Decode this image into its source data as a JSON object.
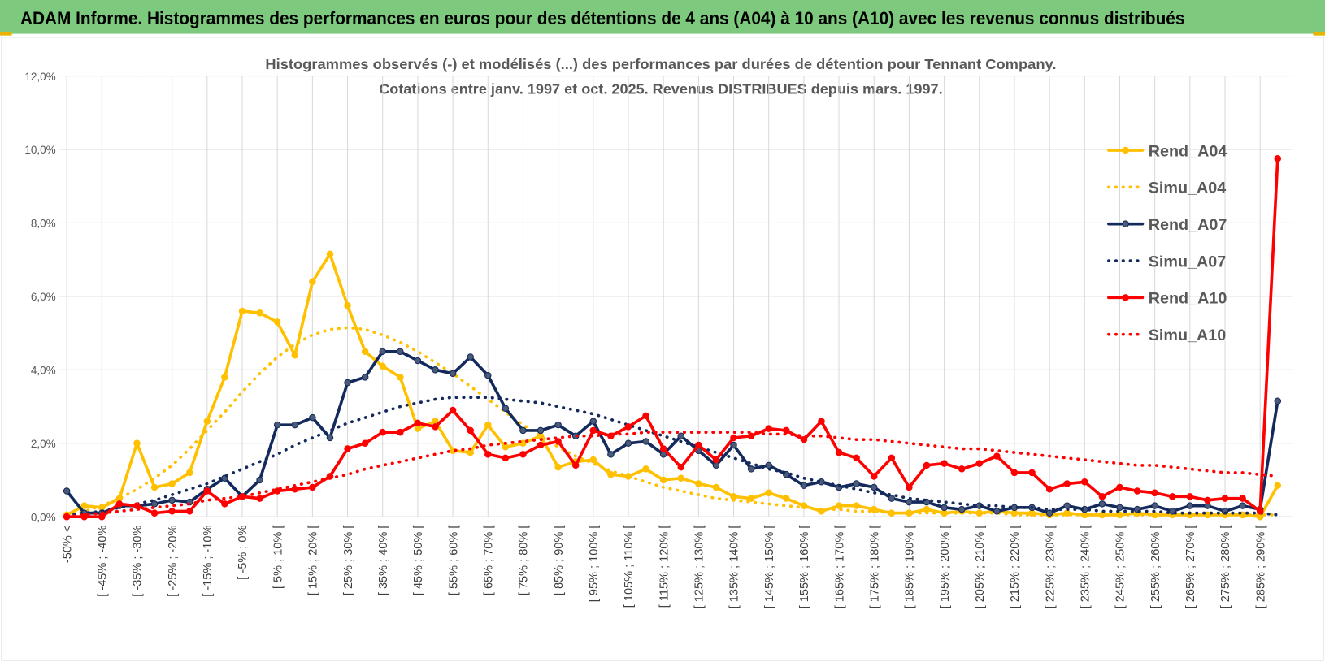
{
  "header": {
    "title": "ADAM Informe. Histogrammes des performances en euros pour des détentions de 4 ans (A04) à 10 ans (A10) avec les revenus connus distribués"
  },
  "chart_data": {
    "type": "line",
    "title": "Histogrammes observés (-) et modélisés (...) des performances par durées de détention pour Tennant Company.",
    "subtitle": "Cotations entre janv. 1997 et oct. 2025.  Revenus DISTRIBUES depuis mars. 1997.",
    "categories": [
      "-50% <",
      null,
      "[ -45% ; -40%",
      null,
      "[ -35% ; -30%",
      null,
      "[ -25% ; -20%",
      null,
      "[ -15% ; -10%",
      null,
      "[ -5% ; 0%",
      null,
      "[ 5% ; 10% [",
      null,
      "[ 15% ; 20% [",
      null,
      "[ 25% ; 30% [",
      null,
      "[ 35% ; 40% [",
      null,
      "[ 45% ; 50% [",
      null,
      "[ 55% ; 60% [",
      null,
      "[ 65% ; 70% [",
      null,
      "[ 75% ; 80% [",
      null,
      "[ 85% ; 90% [",
      null,
      "[ 95% ; 100% [",
      null,
      "[ 105% ; 110% [",
      null,
      "[ 115% ; 120% [",
      null,
      "[ 125% ; 130% [",
      null,
      "[ 135% ; 140% [",
      null,
      "[ 145% ; 150% [",
      null,
      "[ 155% ; 160% [",
      null,
      "[ 165% ; 170% [",
      null,
      "[ 175% ; 180% [",
      null,
      "[ 185% ; 190% [",
      null,
      "[ 195% ; 200% [",
      null,
      "[ 205% ; 210% [",
      null,
      "[ 215% ; 220% [",
      null,
      "[ 225% ; 230% [",
      null,
      "[ 235% ; 240% [",
      null,
      "[ 245% ; 250% [",
      null,
      "[ 255% ; 260% [",
      null,
      "[ 265% ; 270% [",
      null,
      "[ 275% ; 280% [",
      null,
      "[ 285% ; 290% [",
      null
    ],
    "series": [
      {
        "name": "Rend_A04",
        "color": "#FFC000",
        "style": "solid",
        "values": [
          0.05,
          0.3,
          0.25,
          0.5,
          2.0,
          0.8,
          0.9,
          1.2,
          2.6,
          3.8,
          5.6,
          5.55,
          5.3,
          4.4,
          6.4,
          7.15,
          5.75,
          4.5,
          4.1,
          3.8,
          2.4,
          2.6,
          1.8,
          1.75,
          2.5,
          1.9,
          2.0,
          2.2,
          1.35,
          1.5,
          1.55,
          1.15,
          1.1,
          1.3,
          1.0,
          1.05,
          0.9,
          0.8,
          0.55,
          0.5,
          0.65,
          0.5,
          0.3,
          0.15,
          0.3,
          0.3,
          0.2,
          0.1,
          0.1,
          0.2,
          0.1,
          0.15,
          0.1,
          0.15,
          0.1,
          0.1,
          0.05,
          0.1,
          0.05,
          0.05,
          0.05,
          0.1,
          0.05,
          0.05,
          0.05,
          0.05,
          0.05,
          0.05,
          0.0,
          0.85
        ]
      },
      {
        "name": "Simu_A04",
        "color": "#FFC000",
        "style": "dotted",
        "values": [
          0.05,
          0.15,
          0.3,
          0.5,
          0.75,
          1.05,
          1.4,
          1.85,
          2.35,
          2.85,
          3.4,
          3.9,
          4.35,
          4.7,
          4.95,
          5.1,
          5.15,
          5.1,
          4.95,
          4.75,
          4.5,
          4.2,
          3.9,
          3.55,
          3.2,
          2.85,
          2.5,
          2.2,
          1.9,
          1.65,
          1.45,
          1.25,
          1.1,
          0.95,
          0.8,
          0.7,
          0.6,
          0.5,
          0.45,
          0.4,
          0.35,
          0.3,
          0.25,
          0.2,
          0.2,
          0.15,
          0.15,
          0.1,
          0.1,
          0.1,
          0.1,
          0.1,
          0.1,
          0.1,
          0.05,
          0.05,
          0.05,
          0.05,
          0.05,
          0.05,
          0.05,
          0.05,
          0.05,
          0.05,
          0.05,
          0.05,
          0.05,
          0.05,
          0.05,
          0.05
        ]
      },
      {
        "name": "Rend_A07",
        "color": "#142a5c",
        "style": "solid",
        "values": [
          0.7,
          0.1,
          0.1,
          0.3,
          0.3,
          0.35,
          0.45,
          0.4,
          0.75,
          1.05,
          0.55,
          1.0,
          2.5,
          2.5,
          2.7,
          2.15,
          3.65,
          3.8,
          4.5,
          4.5,
          4.25,
          4.0,
          3.9,
          4.35,
          3.85,
          2.95,
          2.35,
          2.35,
          2.5,
          2.2,
          2.6,
          1.7,
          2.0,
          2.05,
          1.7,
          2.2,
          1.8,
          1.4,
          1.95,
          1.3,
          1.4,
          1.15,
          0.85,
          0.95,
          0.8,
          0.9,
          0.8,
          0.5,
          0.4,
          0.4,
          0.25,
          0.2,
          0.3,
          0.15,
          0.25,
          0.25,
          0.1,
          0.3,
          0.2,
          0.35,
          0.25,
          0.2,
          0.3,
          0.15,
          0.3,
          0.3,
          0.15,
          0.3,
          0.2,
          3.15
        ]
      },
      {
        "name": "Simu_A07",
        "color": "#142a5c",
        "style": "dotted",
        "values": [
          0.05,
          0.1,
          0.15,
          0.25,
          0.35,
          0.45,
          0.6,
          0.75,
          0.9,
          1.1,
          1.3,
          1.5,
          1.7,
          1.95,
          2.15,
          2.35,
          2.55,
          2.7,
          2.85,
          3.0,
          3.1,
          3.2,
          3.25,
          3.25,
          3.25,
          3.2,
          3.15,
          3.1,
          3.0,
          2.9,
          2.8,
          2.65,
          2.5,
          2.35,
          2.2,
          2.05,
          1.9,
          1.75,
          1.6,
          1.45,
          1.3,
          1.2,
          1.05,
          0.95,
          0.85,
          0.75,
          0.65,
          0.6,
          0.5,
          0.45,
          0.4,
          0.35,
          0.3,
          0.3,
          0.25,
          0.25,
          0.2,
          0.2,
          0.2,
          0.15,
          0.15,
          0.15,
          0.15,
          0.1,
          0.1,
          0.1,
          0.1,
          0.1,
          0.1,
          0.05
        ]
      },
      {
        "name": "Rend_A10",
        "color": "#FF0000",
        "style": "solid",
        "values": [
          0.0,
          0.0,
          0.0,
          0.35,
          0.3,
          0.1,
          0.15,
          0.15,
          0.7,
          0.35,
          0.55,
          0.5,
          0.7,
          0.75,
          0.8,
          1.1,
          1.85,
          2.0,
          2.3,
          2.3,
          2.55,
          2.45,
          2.9,
          2.35,
          1.7,
          1.6,
          1.7,
          1.95,
          2.05,
          1.4,
          2.35,
          2.2,
          2.45,
          2.75,
          1.85,
          1.35,
          1.95,
          1.55,
          2.15,
          2.2,
          2.4,
          2.35,
          2.1,
          2.6,
          1.75,
          1.6,
          1.1,
          1.6,
          0.8,
          1.4,
          1.45,
          1.3,
          1.45,
          1.65,
          1.2,
          1.2,
          0.75,
          0.9,
          0.95,
          0.55,
          0.8,
          0.7,
          0.65,
          0.55,
          0.55,
          0.45,
          0.5,
          0.5,
          0.15,
          9.75
        ]
      },
      {
        "name": "Simu_A10",
        "color": "#FF0000",
        "style": "dotted",
        "values": [
          0.0,
          0.05,
          0.1,
          0.15,
          0.2,
          0.25,
          0.3,
          0.35,
          0.45,
          0.5,
          0.55,
          0.65,
          0.75,
          0.85,
          0.95,
          1.05,
          1.15,
          1.3,
          1.4,
          1.5,
          1.6,
          1.7,
          1.8,
          1.85,
          1.95,
          2.0,
          2.05,
          2.1,
          2.15,
          2.2,
          2.2,
          2.25,
          2.25,
          2.3,
          2.3,
          2.3,
          2.3,
          2.3,
          2.3,
          2.3,
          2.25,
          2.25,
          2.2,
          2.2,
          2.15,
          2.1,
          2.1,
          2.05,
          2.0,
          1.95,
          1.9,
          1.85,
          1.85,
          1.8,
          1.75,
          1.7,
          1.65,
          1.6,
          1.55,
          1.5,
          1.45,
          1.4,
          1.4,
          1.35,
          1.3,
          1.25,
          1.2,
          1.2,
          1.15,
          1.1
        ]
      }
    ],
    "ylim": [
      0,
      12
    ],
    "yticks": [
      {
        "value": 0,
        "label": "0,0%"
      },
      {
        "value": 2,
        "label": "2,0%"
      },
      {
        "value": 4,
        "label": "4,0%"
      },
      {
        "value": 6,
        "label": "6,0%"
      },
      {
        "value": 8,
        "label": "8,0%"
      },
      {
        "value": 10,
        "label": "10,0%"
      },
      {
        "value": 12,
        "label": "12,0%"
      }
    ],
    "grid": true,
    "legend": "right"
  }
}
